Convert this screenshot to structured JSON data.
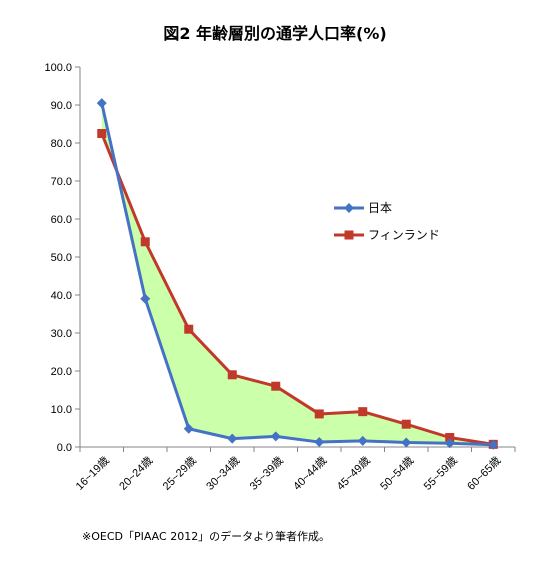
{
  "chart_data": {
    "type": "line",
    "title": "図2 年齢層別の通学人口率(%)",
    "xlabel": "",
    "ylabel": "",
    "ylim": [
      0,
      100
    ],
    "y_ticks": [
      "0.0",
      "10.0",
      "20.0",
      "30.0",
      "40.0",
      "50.0",
      "60.0",
      "70.0",
      "80.0",
      "90.0",
      "100.0"
    ],
    "categories": [
      "16~19歳",
      "20~24歳",
      "25~29歳",
      "30~34歳",
      "35~39歳",
      "40~44歳",
      "45~49歳",
      "50~54歳",
      "55~59歳",
      "60~65歳"
    ],
    "series": [
      {
        "name": "日本",
        "color": "#4472c4",
        "marker": "diamond",
        "values": [
          90.5,
          39.0,
          4.8,
          2.2,
          2.8,
          1.3,
          1.6,
          1.2,
          1.0,
          0.6
        ]
      },
      {
        "name": "フィンランド",
        "color": "#c0392b",
        "marker": "square",
        "values": [
          82.5,
          54.0,
          31.0,
          19.0,
          16.0,
          8.7,
          9.3,
          6.0,
          2.5,
          0.7
        ]
      }
    ],
    "fill_between_color": "#ccffaa",
    "legend_position": "right",
    "grid": false,
    "note": "※OECD「PIAAC 2012」のデータより筆者作成。"
  }
}
